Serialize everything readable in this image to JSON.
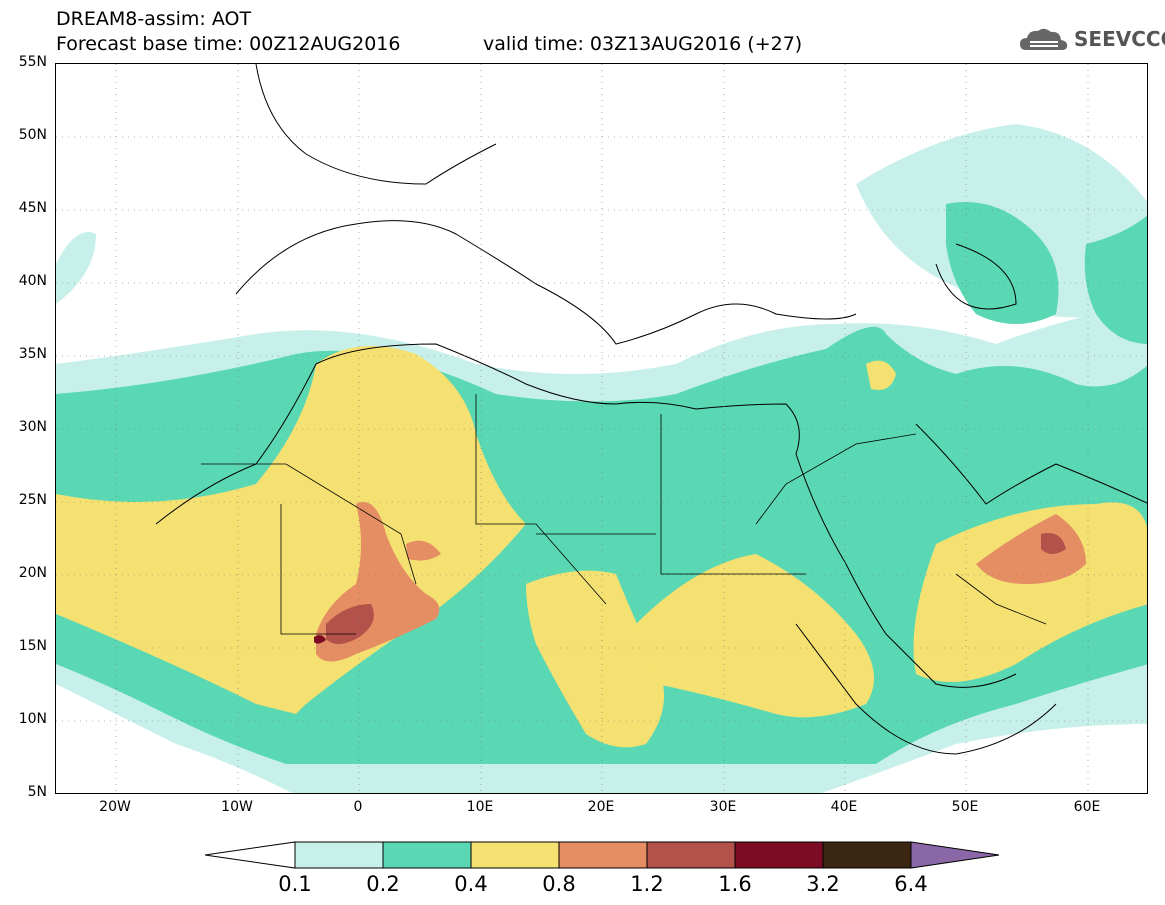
{
  "header": {
    "line1": "DREAM8-assim: AOT",
    "line2_left": "Forecast base time: 00Z12AUG2016",
    "line2_right": "valid time: 03Z13AUG2016 (+27)",
    "logo_text": "SEEVCCC"
  },
  "map": {
    "variable": "AOT",
    "lon_range": [
      -25,
      65
    ],
    "lat_range": [
      5,
      55
    ],
    "lat_labels": [
      "55N",
      "50N",
      "45N",
      "40N",
      "35N",
      "30N",
      "25N",
      "20N",
      "15N",
      "10N",
      "5N"
    ],
    "lon_labels": [
      "20W",
      "10W",
      "0",
      "10E",
      "20E",
      "30E",
      "40E",
      "50E",
      "60E"
    ]
  },
  "colorbar": {
    "levels": [
      "0.1",
      "0.2",
      "0.4",
      "0.8",
      "1.2",
      "1.6",
      "3.2",
      "6.4"
    ],
    "colors": [
      "#c8f0ea",
      "#5ad8b4",
      "#f5e171",
      "#e58e64",
      "#b3524a",
      "#7b0c24",
      "#3b2613",
      "#8a68a8"
    ]
  },
  "legend_colors": {
    "c01": "#c8f0ea",
    "c02": "#5ad8b4",
    "c04": "#f5e171",
    "c08": "#e58e64",
    "c12": "#b3524a",
    "c16": "#7b0c24"
  }
}
